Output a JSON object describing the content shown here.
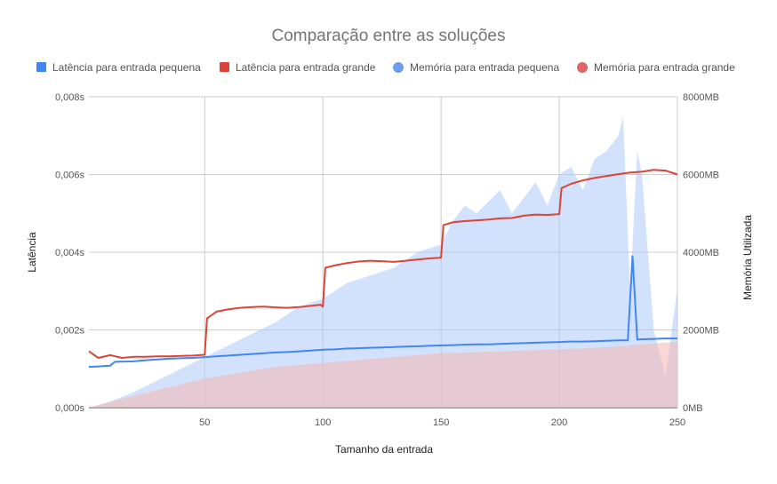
{
  "chart_data": {
    "type": "line",
    "title": "Comparação entre as soluções",
    "xlabel": "Tamanho da entrada",
    "ylabel_left": "Latência",
    "ylabel_right": "Memória Utilizada",
    "xlim": [
      1,
      250
    ],
    "ylim_left": [
      0,
      0.008
    ],
    "ylim_right": [
      0,
      8000
    ],
    "x_ticks": [
      50,
      100,
      150,
      200,
      250
    ],
    "y_left_ticks": [
      0,
      0.002,
      0.004,
      0.006,
      0.008
    ],
    "y_left_tick_labels": [
      "0,000s",
      "0,002s",
      "0,004s",
      "0,006s",
      "0,008s"
    ],
    "y_right_ticks": [
      0,
      2000,
      4000,
      6000,
      8000
    ],
    "y_right_tick_labels": [
      "0MB",
      "2000MB",
      "4000MB",
      "6000MB",
      "8000MB"
    ],
    "grid": true,
    "legend_position": "top",
    "series": [
      {
        "name": "Latência para entrada pequena",
        "axis": "left",
        "kind": "line",
        "color": "#4285f4",
        "points": [
          [
            1,
            0.00105
          ],
          [
            5,
            0.00106
          ],
          [
            10,
            0.00108
          ],
          [
            12,
            0.00118
          ],
          [
            20,
            0.00119
          ],
          [
            25,
            0.00122
          ],
          [
            30,
            0.00124
          ],
          [
            35,
            0.00126
          ],
          [
            40,
            0.00127
          ],
          [
            45,
            0.00128
          ],
          [
            50,
            0.0013
          ],
          [
            55,
            0.00132
          ],
          [
            60,
            0.00134
          ],
          [
            65,
            0.00136
          ],
          [
            70,
            0.00138
          ],
          [
            75,
            0.0014
          ],
          [
            80,
            0.00142
          ],
          [
            85,
            0.00143
          ],
          [
            90,
            0.00145
          ],
          [
            95,
            0.00147
          ],
          [
            100,
            0.00149
          ],
          [
            105,
            0.0015
          ],
          [
            110,
            0.00152
          ],
          [
            115,
            0.00153
          ],
          [
            120,
            0.00154
          ],
          [
            125,
            0.00155
          ],
          [
            130,
            0.00156
          ],
          [
            135,
            0.00157
          ],
          [
            140,
            0.00158
          ],
          [
            145,
            0.00159
          ],
          [
            150,
            0.0016
          ],
          [
            155,
            0.00161
          ],
          [
            160,
            0.00162
          ],
          [
            165,
            0.00163
          ],
          [
            170,
            0.00163
          ],
          [
            175,
            0.00164
          ],
          [
            180,
            0.00165
          ],
          [
            185,
            0.00166
          ],
          [
            190,
            0.00167
          ],
          [
            195,
            0.00168
          ],
          [
            200,
            0.00169
          ],
          [
            205,
            0.0017
          ],
          [
            210,
            0.0017
          ],
          [
            215,
            0.00171
          ],
          [
            220,
            0.00172
          ],
          [
            225,
            0.00173
          ],
          [
            229,
            0.00173
          ],
          [
            231,
            0.0039
          ],
          [
            233,
            0.00175
          ],
          [
            235,
            0.00176
          ],
          [
            240,
            0.00177
          ],
          [
            245,
            0.00178
          ],
          [
            250,
            0.00178
          ]
        ]
      },
      {
        "name": "Latência para entrada grande",
        "axis": "left",
        "kind": "line",
        "color": "#db4437",
        "points": [
          [
            1,
            0.00145
          ],
          [
            5,
            0.00128
          ],
          [
            10,
            0.00135
          ],
          [
            15,
            0.00128
          ],
          [
            20,
            0.00131
          ],
          [
            25,
            0.00131
          ],
          [
            30,
            0.00132
          ],
          [
            35,
            0.00132
          ],
          [
            40,
            0.00133
          ],
          [
            45,
            0.00134
          ],
          [
            50,
            0.00136
          ],
          [
            51,
            0.0023
          ],
          [
            55,
            0.00247
          ],
          [
            60,
            0.00253
          ],
          [
            65,
            0.00257
          ],
          [
            70,
            0.00259
          ],
          [
            75,
            0.0026
          ],
          [
            80,
            0.00258
          ],
          [
            85,
            0.00257
          ],
          [
            90,
            0.00259
          ],
          [
            95,
            0.00262
          ],
          [
            99,
            0.00265
          ],
          [
            100,
            0.0026
          ],
          [
            101,
            0.0036
          ],
          [
            105,
            0.00366
          ],
          [
            110,
            0.00372
          ],
          [
            115,
            0.00376
          ],
          [
            120,
            0.00378
          ],
          [
            125,
            0.00377
          ],
          [
            130,
            0.00375
          ],
          [
            135,
            0.00378
          ],
          [
            140,
            0.00381
          ],
          [
            145,
            0.00384
          ],
          [
            150,
            0.00386
          ],
          [
            151,
            0.0047
          ],
          [
            155,
            0.00477
          ],
          [
            160,
            0.0048
          ],
          [
            165,
            0.00482
          ],
          [
            170,
            0.00484
          ],
          [
            175,
            0.00487
          ],
          [
            180,
            0.00488
          ],
          [
            185,
            0.00494
          ],
          [
            190,
            0.00497
          ],
          [
            195,
            0.00496
          ],
          [
            200,
            0.00498
          ],
          [
            201,
            0.00565
          ],
          [
            205,
            0.00576
          ],
          [
            210,
            0.00585
          ],
          [
            215,
            0.00591
          ],
          [
            220,
            0.00596
          ],
          [
            225,
            0.00601
          ],
          [
            230,
            0.00605
          ],
          [
            235,
            0.00607
          ],
          [
            240,
            0.00612
          ],
          [
            245,
            0.0061
          ],
          [
            250,
            0.006
          ]
        ]
      },
      {
        "name": "Memória para entrada pequena",
        "axis": "right",
        "kind": "area",
        "color": "#aecbfa",
        "points": [
          [
            1,
            0
          ],
          [
            10,
            150
          ],
          [
            20,
            400
          ],
          [
            30,
            700
          ],
          [
            40,
            1000
          ],
          [
            50,
            1300
          ],
          [
            60,
            1600
          ],
          [
            70,
            1900
          ],
          [
            80,
            2200
          ],
          [
            90,
            2600
          ],
          [
            100,
            2800
          ],
          [
            110,
            3200
          ],
          [
            120,
            3400
          ],
          [
            130,
            3600
          ],
          [
            140,
            4000
          ],
          [
            150,
            4200
          ],
          [
            155,
            4800
          ],
          [
            160,
            5200
          ],
          [
            165,
            5000
          ],
          [
            170,
            5300
          ],
          [
            175,
            5600
          ],
          [
            180,
            5000
          ],
          [
            185,
            5400
          ],
          [
            190,
            5800
          ],
          [
            195,
            5200
          ],
          [
            200,
            6000
          ],
          [
            205,
            6200
          ],
          [
            210,
            5600
          ],
          [
            215,
            6400
          ],
          [
            220,
            6600
          ],
          [
            225,
            7000
          ],
          [
            227,
            7500
          ],
          [
            230,
            3000
          ],
          [
            233,
            6600
          ],
          [
            235,
            6000
          ],
          [
            240,
            2000
          ],
          [
            245,
            800
          ],
          [
            250,
            3100
          ]
        ]
      },
      {
        "name": "Memória para entrada grande",
        "axis": "right",
        "kind": "area",
        "color": "#f4b6b0",
        "points": [
          [
            1,
            0
          ],
          [
            10,
            150
          ],
          [
            20,
            300
          ],
          [
            30,
            450
          ],
          [
            40,
            600
          ],
          [
            50,
            750
          ],
          [
            60,
            850
          ],
          [
            70,
            950
          ],
          [
            80,
            1050
          ],
          [
            90,
            1100
          ],
          [
            100,
            1150
          ],
          [
            110,
            1200
          ],
          [
            120,
            1250
          ],
          [
            130,
            1300
          ],
          [
            140,
            1350
          ],
          [
            150,
            1400
          ],
          [
            160,
            1420
          ],
          [
            170,
            1440
          ],
          [
            180,
            1460
          ],
          [
            190,
            1480
          ],
          [
            200,
            1500
          ],
          [
            210,
            1520
          ],
          [
            220,
            1560
          ],
          [
            230,
            1600
          ],
          [
            240,
            1650
          ],
          [
            250,
            1700
          ]
        ]
      }
    ]
  }
}
